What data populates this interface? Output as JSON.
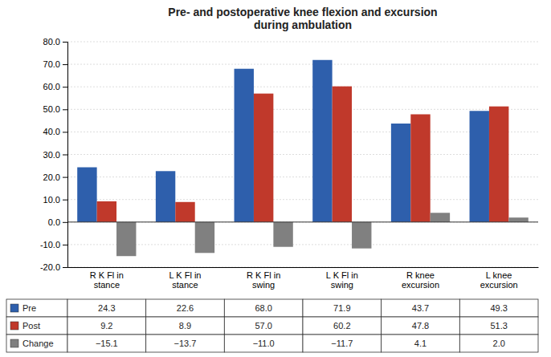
{
  "chart_data": {
    "type": "bar",
    "title": "Pre- and postoperative knee flexion and excursion\nduring ambulation",
    "categories": [
      "R K Fl in\nstance",
      "L K Fl in\nstance",
      "R K Fl in\nswing",
      "L K Fl in\nswing",
      "R knee\nexcursion",
      "L knee\nexcursion"
    ],
    "series": [
      {
        "name": "Pre",
        "color": "#2E5FAC",
        "values": [
          24.3,
          22.6,
          68.0,
          71.9,
          43.7,
          49.3
        ],
        "value_labels": [
          "24.3",
          "22.6",
          "68.0",
          "71.9",
          "43.7",
          "49.3"
        ]
      },
      {
        "name": "Post",
        "color": "#C0392B",
        "values": [
          9.2,
          8.9,
          57.0,
          60.2,
          47.8,
          51.3
        ],
        "value_labels": [
          "9.2",
          "8.9",
          "57.0",
          "60.2",
          "47.8",
          "51.3"
        ]
      },
      {
        "name": "Change",
        "color": "#808080",
        "values": [
          -15.1,
          -13.7,
          -11.0,
          -11.7,
          4.1,
          2.0
        ],
        "value_labels": [
          "−15.1",
          "−13.7",
          "−11.0",
          "−11.7",
          "4.1",
          "2.0"
        ]
      }
    ],
    "ylim": [
      -20.0,
      80.0
    ],
    "yticks": [
      {
        "value": -20.0,
        "label": "-20.0"
      },
      {
        "value": -10.0,
        "label": "-10.0"
      },
      {
        "value": 0.0,
        "label": "0.0"
      },
      {
        "value": 10.0,
        "label": "10.0"
      },
      {
        "value": 20.0,
        "label": "20.0"
      },
      {
        "value": 30.0,
        "label": "30.0"
      },
      {
        "value": 40.0,
        "label": "40.0"
      },
      {
        "value": 50.0,
        "label": "50.0"
      },
      {
        "value": 60.0,
        "label": "60.0"
      },
      {
        "value": 70.0,
        "label": "70.0"
      },
      {
        "value": 80.0,
        "label": "80.0"
      }
    ],
    "grid": true
  }
}
